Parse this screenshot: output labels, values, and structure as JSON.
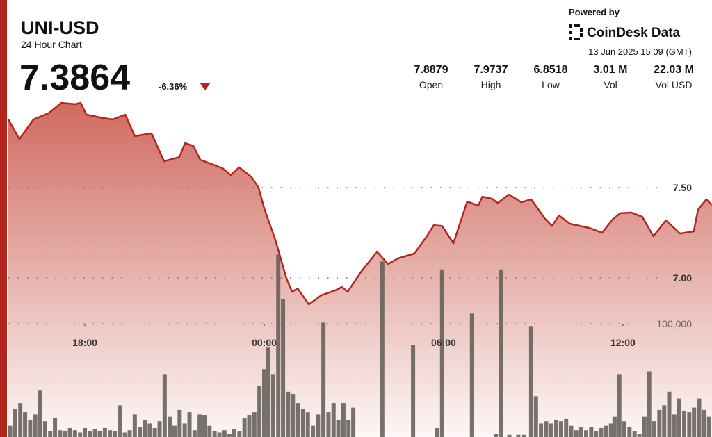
{
  "header": {
    "symbol": "UNI-USD",
    "subtitle": "24 Hour Chart",
    "price": "7.3864",
    "change": "-6.36%"
  },
  "branding": {
    "powered": "Powered by",
    "name": "CoinDesk Data",
    "timestamp": "13 Jun 2025 15:09 (GMT)"
  },
  "stats": [
    {
      "value": "7.8879",
      "label": "Open"
    },
    {
      "value": "7.9737",
      "label": "High"
    },
    {
      "value": "6.8518",
      "label": "Low"
    },
    {
      "value": "3.01 M",
      "label": "Vol"
    },
    {
      "value": "22.03 M",
      "label": "Vol USD"
    }
  ],
  "chart_data": {
    "type": "line",
    "color": "#b3261e",
    "x": [
      -8.56,
      -8.19,
      -7.72,
      -7.21,
      -6.79,
      -6.33,
      -6.14,
      -5.95,
      -5.4,
      -5.07,
      -4.65,
      -4.33,
      -3.77,
      -3.35,
      -2.84,
      -2.65,
      -2.37,
      -2.14,
      -1.4,
      -1.12,
      -0.84,
      -0.42,
      -0.19,
      0.0,
      0.37,
      0.74,
      0.93,
      1.12,
      1.49,
      1.91,
      2.37,
      2.6,
      2.79,
      3.26,
      3.63,
      3.77,
      4.14,
      4.47,
      5.02,
      5.44,
      5.67,
      5.95,
      6.33,
      6.79,
      7.16,
      7.3,
      7.63,
      7.81,
      8.19,
      8.6,
      8.93,
      9.4,
      9.63,
      9.86,
      10.23,
      10.88,
      11.3,
      11.67,
      11.91,
      12.28,
      12.65,
      13.02,
      13.44,
      13.91,
      14.37,
      14.51,
      14.79,
      14.98
    ],
    "values": [
      7.877,
      7.769,
      7.877,
      7.912,
      7.969,
      7.962,
      7.969,
      7.904,
      7.885,
      7.877,
      7.904,
      7.785,
      7.8,
      7.646,
      7.669,
      7.746,
      7.731,
      7.654,
      7.608,
      7.569,
      7.612,
      7.558,
      7.5,
      7.385,
      7.212,
      7.0,
      6.923,
      6.942,
      6.854,
      6.904,
      6.931,
      6.95,
      6.923,
      7.038,
      7.115,
      7.146,
      7.077,
      7.108,
      7.135,
      7.231,
      7.292,
      7.288,
      7.192,
      7.423,
      7.4,
      7.45,
      7.438,
      7.415,
      7.462,
      7.419,
      7.435,
      7.327,
      7.288,
      7.346,
      7.3,
      7.277,
      7.25,
      7.327,
      7.358,
      7.362,
      7.338,
      7.231,
      7.319,
      7.246,
      7.258,
      7.377,
      7.435,
      7.404
    ],
    "volume": {
      "color": "#5f5a55",
      "x": [
        -8.5,
        -8.33,
        -8.16,
        -8.0,
        -7.83,
        -7.66,
        -7.5,
        -7.33,
        -7.16,
        -7.0,
        -6.83,
        -6.66,
        -6.5,
        -6.33,
        -6.16,
        -6.0,
        -5.83,
        -5.66,
        -5.5,
        -5.33,
        -5.16,
        -5.0,
        -4.83,
        -4.66,
        -4.5,
        -4.33,
        -4.16,
        -4.0,
        -3.83,
        -3.66,
        -3.5,
        -3.33,
        -3.16,
        -3.0,
        -2.83,
        -2.66,
        -2.5,
        -2.33,
        -2.16,
        -2.0,
        -1.83,
        -1.66,
        -1.5,
        -1.33,
        -1.16,
        -1.0,
        -0.83,
        -0.66,
        -0.5,
        -0.33,
        -0.16,
        0.0,
        0.14,
        0.3,
        0.47,
        0.63,
        0.8,
        0.96,
        1.13,
        1.3,
        1.46,
        1.63,
        1.8,
        1.98,
        2.15,
        2.32,
        2.48,
        2.65,
        2.82,
        2.98,
        3.95,
        4.98,
        5.78,
        5.95,
        6.95,
        7.75,
        7.93,
        8.2,
        8.5,
        8.7,
        8.93,
        9.09,
        9.26,
        9.43,
        9.6,
        9.77,
        9.93,
        10.1,
        10.27,
        10.44,
        10.6,
        10.77,
        10.94,
        11.1,
        11.27,
        11.44,
        11.6,
        11.72,
        11.88,
        12.05,
        12.22,
        12.39,
        12.55,
        12.72,
        12.88,
        13.05,
        13.22,
        13.38,
        13.55,
        13.72,
        13.88,
        14.05,
        14.22,
        14.38,
        14.55,
        14.72,
        14.88
      ],
      "values": [
        10000,
        25000,
        30000,
        22000,
        15000,
        20000,
        41000,
        14000,
        5000,
        17000,
        6000,
        5000,
        8000,
        6000,
        4000,
        8000,
        5000,
        7000,
        5000,
        8000,
        6000,
        5000,
        28000,
        4000,
        6000,
        20000,
        9000,
        15000,
        12000,
        8000,
        14000,
        55000,
        18000,
        10000,
        24000,
        12000,
        22000,
        6000,
        20000,
        19000,
        10000,
        5000,
        4000,
        6000,
        3000,
        7000,
        5000,
        17000,
        19000,
        22000,
        45000,
        60000,
        79000,
        55000,
        161000,
        122000,
        40000,
        38000,
        30000,
        25000,
        22000,
        10000,
        20000,
        101000,
        22000,
        30000,
        15000,
        30000,
        15000,
        26000,
        155000,
        81000,
        8000,
        148000,
        109000,
        3000,
        148000,
        2000,
        2000,
        2000,
        98000,
        36000,
        12000,
        14000,
        12000,
        15000,
        14000,
        16000,
        10000,
        6000,
        9000,
        6000,
        9000,
        5000,
        8000,
        10000,
        12000,
        18000,
        55000,
        14000,
        9000,
        5000,
        3000,
        18000,
        58000,
        14000,
        24000,
        28000,
        40000,
        20000,
        34000,
        23000,
        22000,
        26000,
        34000,
        24000,
        18000
      ]
    },
    "xlim": [
      -8.56,
      14.98
    ],
    "ylim": [
      6.12,
      8.0
    ],
    "y2lim": [
      0,
      300000
    ],
    "xticks": [
      {
        "value": -6,
        "label": "18:00"
      },
      {
        "value": 0,
        "label": "00:00"
      },
      {
        "value": 6,
        "label": "06:00"
      },
      {
        "value": 12,
        "label": "12:00"
      }
    ],
    "yticks": [
      {
        "value": 7,
        "label": "7.00"
      },
      {
        "value": 7.5,
        "label": "7.50"
      }
    ],
    "y2ticks": [
      {
        "value": 100000,
        "label": "100,000"
      }
    ],
    "grid": true
  }
}
